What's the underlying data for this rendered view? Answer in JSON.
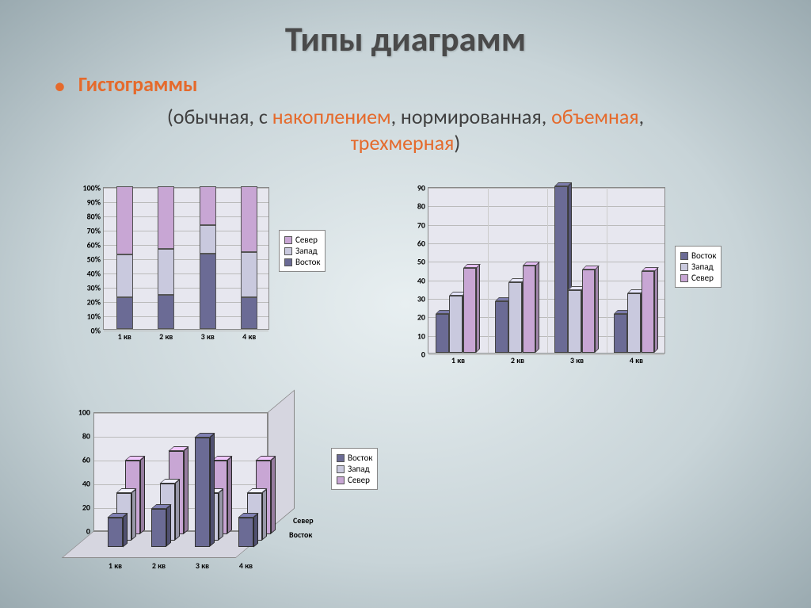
{
  "title": "Типы диаграмм",
  "bullet": "Гистограммы",
  "sub_prefix": "(обычная, с ",
  "sub_w1": "накоплением",
  "sub_mid1": ", нормированная, ",
  "sub_w2": "объемная",
  "sub_mid2": ", ",
  "sub_w3": "трехмерная",
  "sub_suffix": ")",
  "colors": {
    "vostok": "#6b6b95",
    "zapad": "#c9c9de",
    "sever": "#c8a6d4",
    "grid": "#bbbbbb",
    "border": "#888888"
  },
  "categories": [
    "1 кв",
    "2 кв",
    "3 кв",
    "4 кв"
  ],
  "legend_items": [
    "Восток",
    "Запад",
    "Север"
  ],
  "legend_items_rev": [
    "Север",
    "Запад",
    "Восток"
  ],
  "chart1": {
    "type": "stacked-bar-100",
    "yticks": [
      "0%",
      "10%",
      "20%",
      "30%",
      "40%",
      "50%",
      "60%",
      "70%",
      "80%",
      "90%",
      "100%"
    ],
    "ylim": [
      0,
      100
    ],
    "bar_width": 0.4,
    "series": {
      "vostok": [
        22,
        24,
        53,
        22
      ],
      "zapad": [
        30,
        32,
        20,
        32
      ],
      "sever": [
        48,
        44,
        27,
        46
      ]
    }
  },
  "chart2": {
    "type": "grouped-bar",
    "yticks": [
      0,
      10,
      20,
      30,
      40,
      50,
      60,
      70,
      80,
      90
    ],
    "ylim": [
      0,
      90
    ],
    "bar_width": 0.22,
    "series": {
      "vostok": [
        21,
        28,
        90,
        21
      ],
      "zapad": [
        31,
        38,
        34,
        32
      ],
      "sever": [
        46,
        47,
        45,
        44
      ]
    }
  },
  "chart3": {
    "type": "3d-bar",
    "yticks": [
      0,
      20,
      40,
      60,
      80,
      100
    ],
    "ylim": [
      0,
      100
    ],
    "depth_labels": [
      "Север",
      "Восток"
    ],
    "series": {
      "vostok": [
        25,
        32,
        92,
        25
      ],
      "zapad": [
        40,
        48,
        40,
        40
      ],
      "sever": [
        62,
        70,
        62,
        62
      ]
    }
  }
}
